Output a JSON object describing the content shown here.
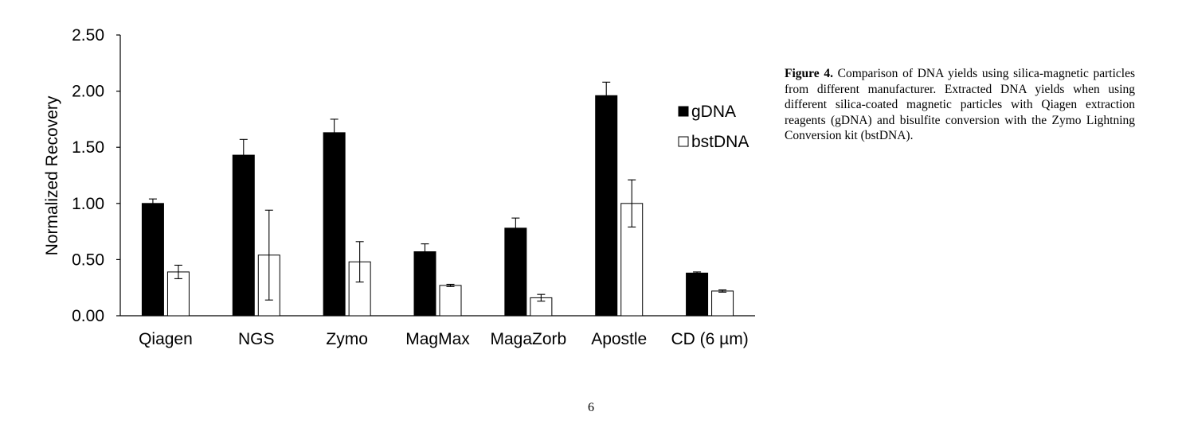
{
  "chart_data": {
    "type": "bar",
    "title": "",
    "xlabel": "",
    "ylabel": "Normalized Recovery",
    "ylim": [
      0,
      2.5
    ],
    "yticks": [
      "0.00",
      "0.50",
      "1.00",
      "1.50",
      "2.00",
      "2.50"
    ],
    "grid": false,
    "legend_position": "right",
    "categories": [
      "Qiagen",
      "NGS",
      "Zymo",
      "MagMax",
      "MagaZorb",
      "Apostle",
      "CD (6 µm)"
    ],
    "series": [
      {
        "name": "gDNA",
        "color": "#000000",
        "values": [
          1.0,
          1.43,
          1.63,
          0.57,
          0.78,
          1.96,
          0.38
        ],
        "errors": [
          0.04,
          0.14,
          0.12,
          0.07,
          0.09,
          0.12,
          0.01
        ]
      },
      {
        "name": "bstDNA",
        "color": "#ffffff",
        "values": [
          0.39,
          0.54,
          0.48,
          0.27,
          0.16,
          1.0,
          0.22
        ],
        "errors": [
          0.06,
          0.4,
          0.18,
          0.01,
          0.03,
          0.21,
          0.01
        ]
      }
    ]
  },
  "caption": {
    "label": "Figure 4.",
    "text": "Comparison of DNA yields using silica-magnetic particles from different manufacturer. Extracted DNA yields when using different silica-coated magnetic particles with Qiagen extraction reagents (gDNA) and bisulfite conversion with the Zymo Lightning Conversion kit (bstDNA)."
  },
  "page_number": "6"
}
